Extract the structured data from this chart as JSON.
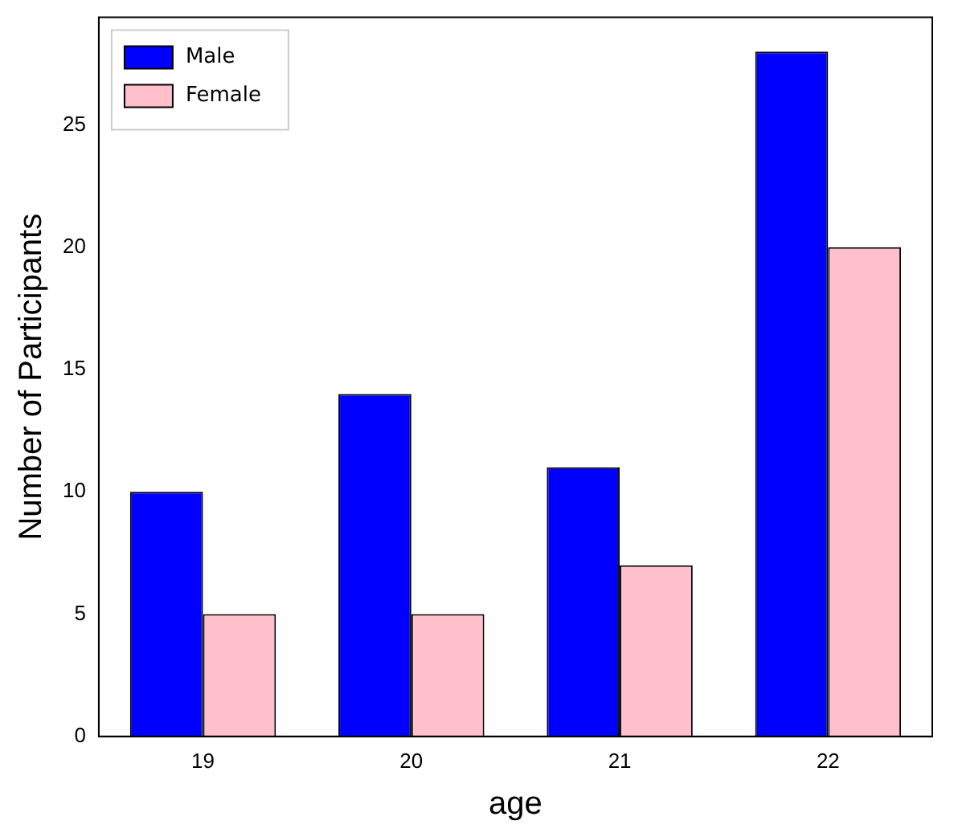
{
  "chart_data": {
    "type": "bar",
    "xlabel": "age",
    "ylabel": "Number of Participants",
    "categories": [
      "19",
      "20",
      "21",
      "22"
    ],
    "series": [
      {
        "name": "Male",
        "color": "#0000ff",
        "values": [
          10,
          14,
          11,
          28
        ]
      },
      {
        "name": "Female",
        "color": "#ffc0cb",
        "values": [
          5,
          5,
          7,
          20
        ]
      }
    ],
    "ylim": [
      0,
      29.4
    ],
    "yticks": [
      0,
      5,
      10,
      15,
      20,
      25
    ],
    "grid": false,
    "legend": "top left"
  }
}
